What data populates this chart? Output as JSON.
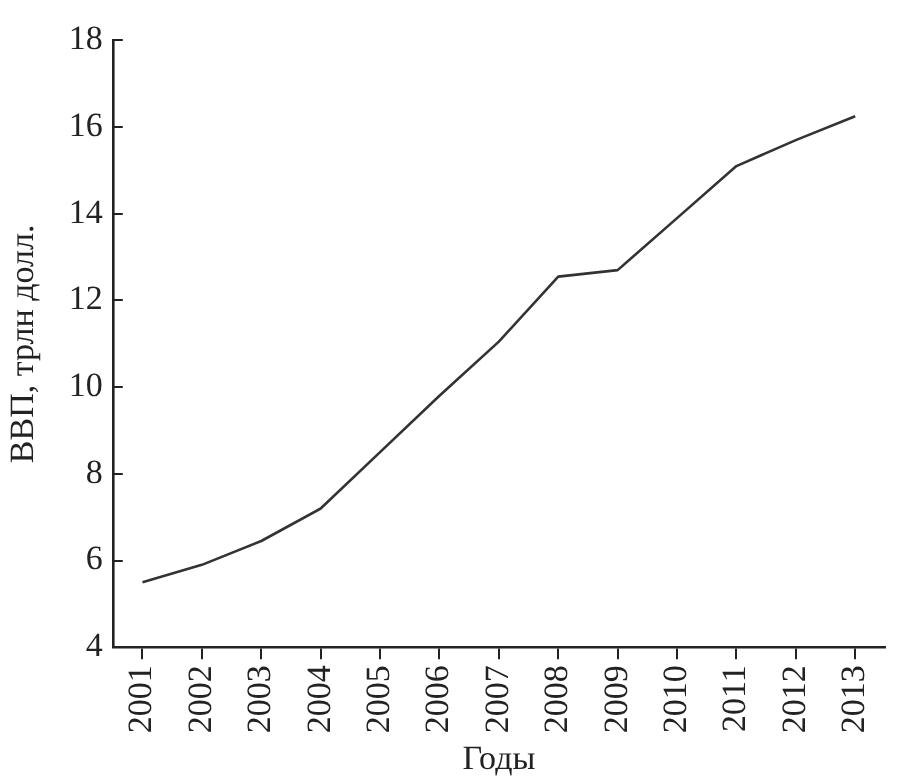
{
  "chart_data": {
    "type": "line",
    "xlabel": "Годы",
    "ylabel": "ВВП, трлн долл.",
    "categories": [
      "2001",
      "2002",
      "2003",
      "2004",
      "2005",
      "2006",
      "2007",
      "2008",
      "2009",
      "2010",
      "2011",
      "2012",
      "2013"
    ],
    "series": [
      {
        "color": "#333333",
        "values": [
          5.5,
          5.9,
          6.45,
          7.2,
          8.5,
          9.8,
          11.05,
          12.55,
          12.7,
          13.9,
          15.1,
          15.7,
          16.25
        ]
      }
    ],
    "ylim": [
      4,
      18
    ],
    "yticks": [
      4,
      6,
      8,
      10,
      12,
      14,
      16,
      18
    ],
    "grid": false,
    "legend": false,
    "marker": "none",
    "line_style": "solid"
  }
}
